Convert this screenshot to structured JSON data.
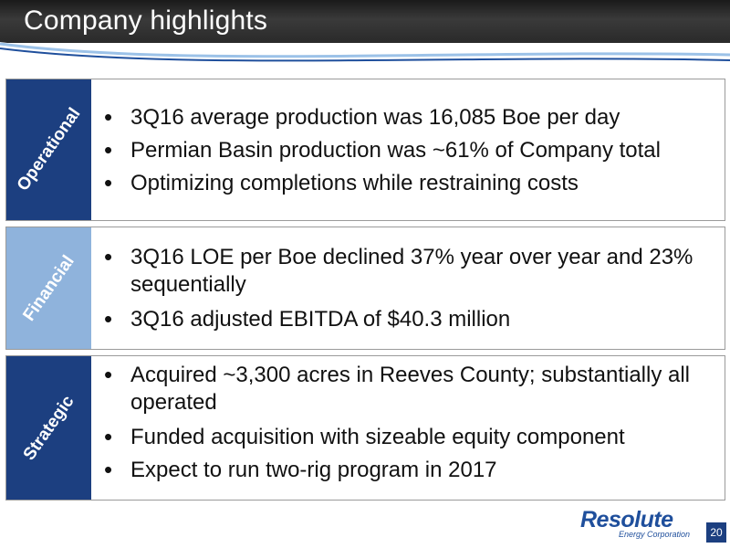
{
  "slide": {
    "title": "Company highlights",
    "page_number": "20"
  },
  "sections": {
    "operational": {
      "label": "Operational",
      "bullets": [
        "3Q16 average production was 16,085 Boe per day",
        "Permian Basin production was ~61% of Company total",
        "Optimizing completions while restraining costs"
      ]
    },
    "financial": {
      "label": "Financial",
      "bullets": [
        "3Q16 LOE per Boe declined 37% year over year and 23% sequentially",
        "3Q16 adjusted EBITDA of $40.3 million"
      ]
    },
    "strategic": {
      "label": "Strategic",
      "bullets": [
        "Acquired ~3,300 acres in Reeves County; substantially all operated",
        "Funded acquisition with sizeable equity component",
        "Expect to run two-rig program in 2017"
      ]
    }
  },
  "logo": {
    "name": "Resolute",
    "subtitle": "Energy Corporation"
  },
  "colors": {
    "operational_label": "#1c3f80",
    "financial_label": "#8fb3dc",
    "strategic_label": "#1c3f80",
    "accent_blue": "#1f4f9c"
  }
}
